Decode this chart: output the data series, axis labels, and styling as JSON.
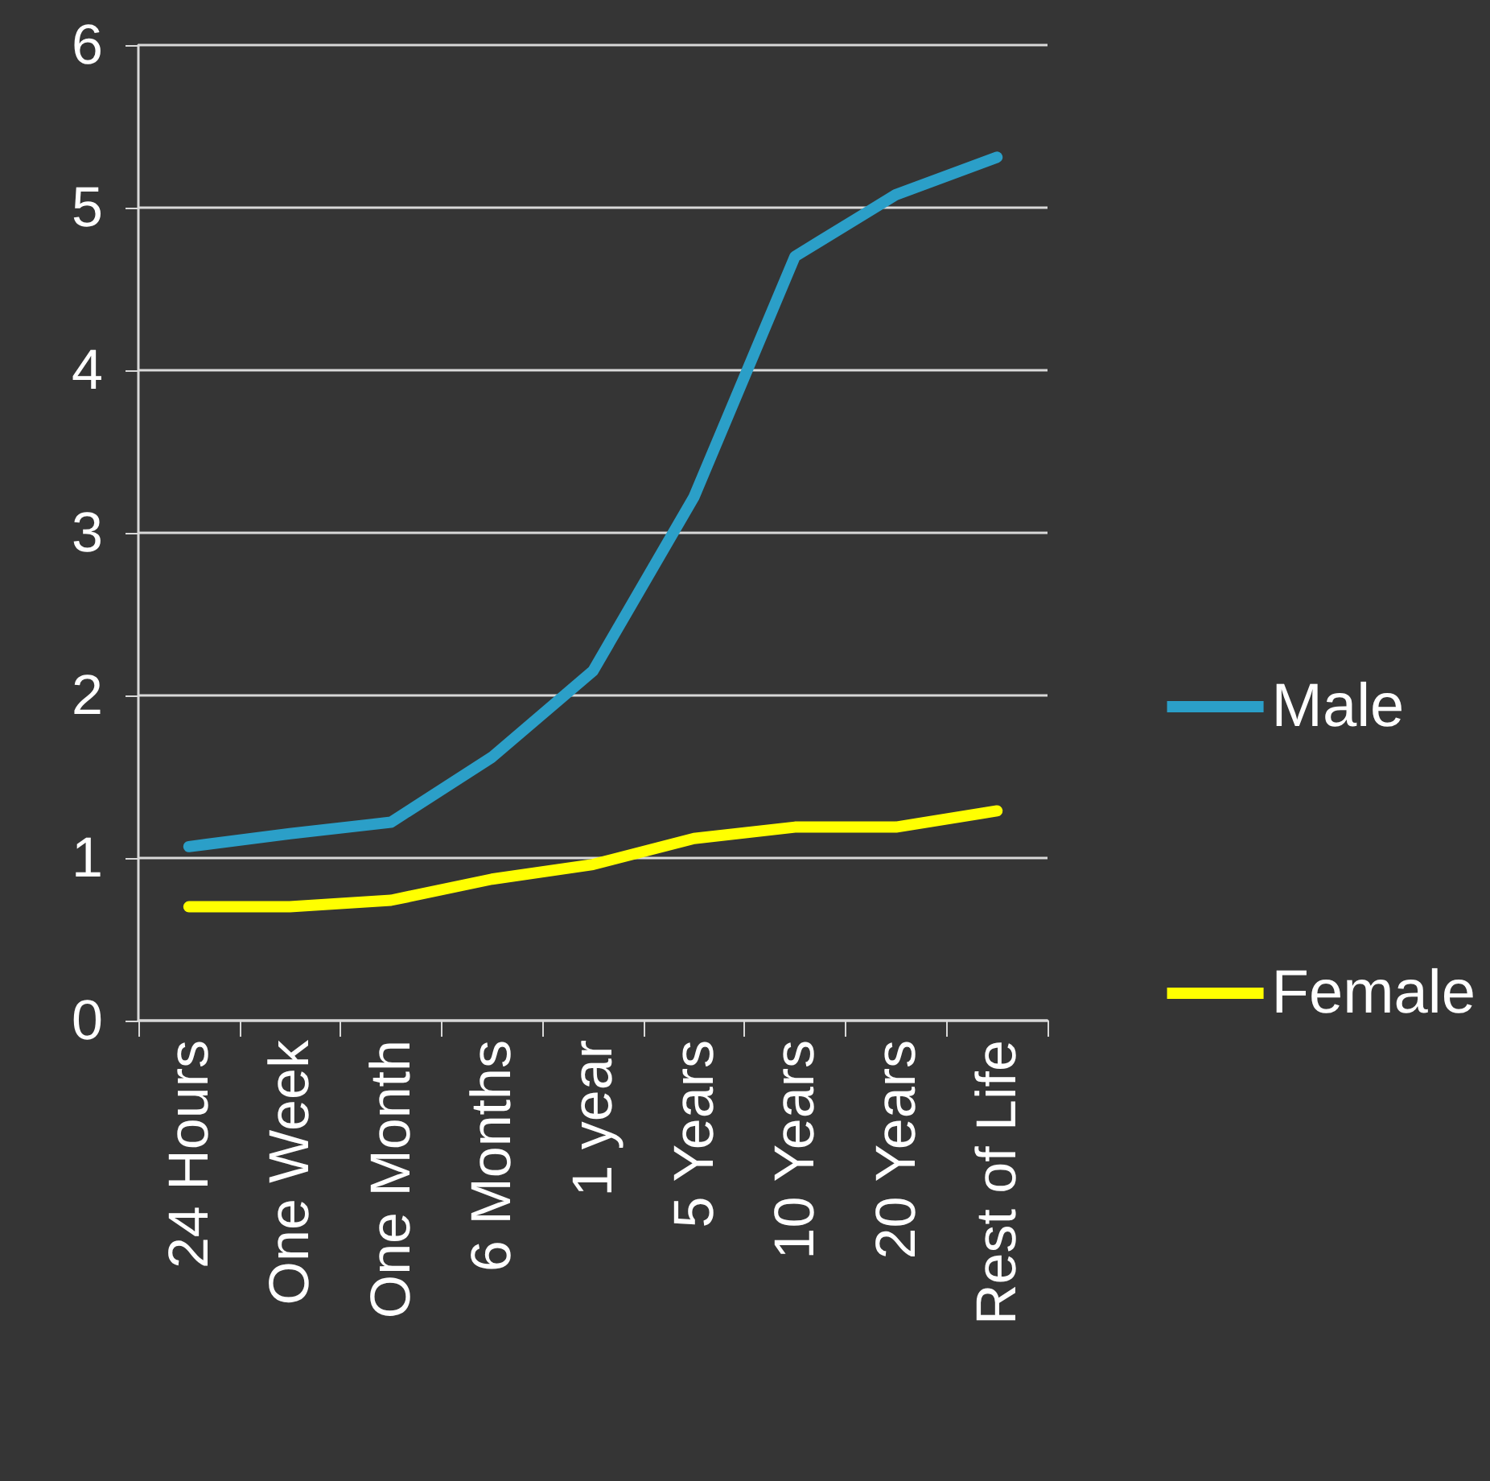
{
  "chart_data": {
    "type": "line",
    "categories": [
      "24 Hours",
      "One Week",
      "One Month",
      "6 Months",
      "1 year",
      "5 Years",
      "10 Years",
      "20 Years",
      "Rest of Life"
    ],
    "series": [
      {
        "name": "Male",
        "color": "#2b9fc8",
        "values": [
          1.07,
          1.15,
          1.22,
          1.62,
          2.15,
          3.22,
          4.7,
          5.08,
          5.31
        ]
      },
      {
        "name": "Female",
        "color": "#ffff00",
        "values": [
          0.7,
          0.7,
          0.74,
          0.87,
          0.96,
          1.12,
          1.19,
          1.19,
          1.29
        ]
      }
    ],
    "ylim": [
      0,
      6
    ],
    "yticks": [
      0,
      1,
      2,
      3,
      4,
      5,
      6
    ],
    "grid": "y",
    "legend": "right",
    "line_style": "solid"
  }
}
